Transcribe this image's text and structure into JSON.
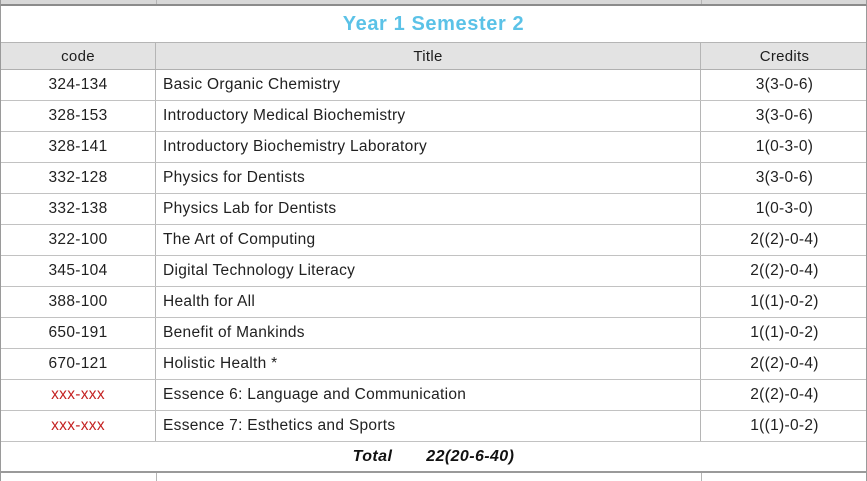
{
  "table": {
    "title": "Year 1 Semester 2",
    "title_color": "#5bc2e7",
    "columns": {
      "code": "code",
      "title": "Title",
      "credits": "Credits"
    },
    "rows": [
      {
        "code": "324-134",
        "title": "Basic Organic Chemistry",
        "credits": "3(3-0-6)",
        "code_red": false
      },
      {
        "code": "328-153",
        "title": "Introductory Medical Biochemistry",
        "credits": "3(3-0-6)",
        "code_red": false
      },
      {
        "code": "328-141",
        "title": "Introductory Biochemistry Laboratory",
        "credits": "1(0-3-0)",
        "code_red": false
      },
      {
        "code": "332-128",
        "title": "Physics for Dentists",
        "credits": "3(3-0-6)",
        "code_red": false
      },
      {
        "code": "332-138",
        "title": "Physics Lab for Dentists",
        "credits": "1(0-3-0)",
        "code_red": false
      },
      {
        "code": "322-100",
        "title": "The Art of Computing",
        "credits": "2((2)-0-4)",
        "code_red": false
      },
      {
        "code": "345-104",
        "title": "Digital Technology Literacy",
        "credits": "2((2)-0-4)",
        "code_red": false
      },
      {
        "code": "388-100",
        "title": "Health for All",
        "credits": "1((1)-0-2)",
        "code_red": false
      },
      {
        "code": "650-191",
        "title": "Benefit of Mankinds",
        "credits": "1((1)-0-2)",
        "code_red": false
      },
      {
        "code": "670-121",
        "title": "Holistic Health *",
        "credits": "2((2)-0-4)",
        "code_red": false
      },
      {
        "code": "xxx-xxx",
        "title": "Essence 6: Language and Communication",
        "credits": "2((2)-0-4)",
        "code_red": true
      },
      {
        "code": "xxx-xxx",
        "title": "Essence 7: Esthetics and Sports",
        "credits": "1((1)-0-2)",
        "code_red": true
      }
    ],
    "total": {
      "label": "Total",
      "value": "22(20-6-40)"
    },
    "colors": {
      "header_bg": "#e3e3e3",
      "red_code": "#c42121",
      "border": "#b5b5b5"
    }
  }
}
